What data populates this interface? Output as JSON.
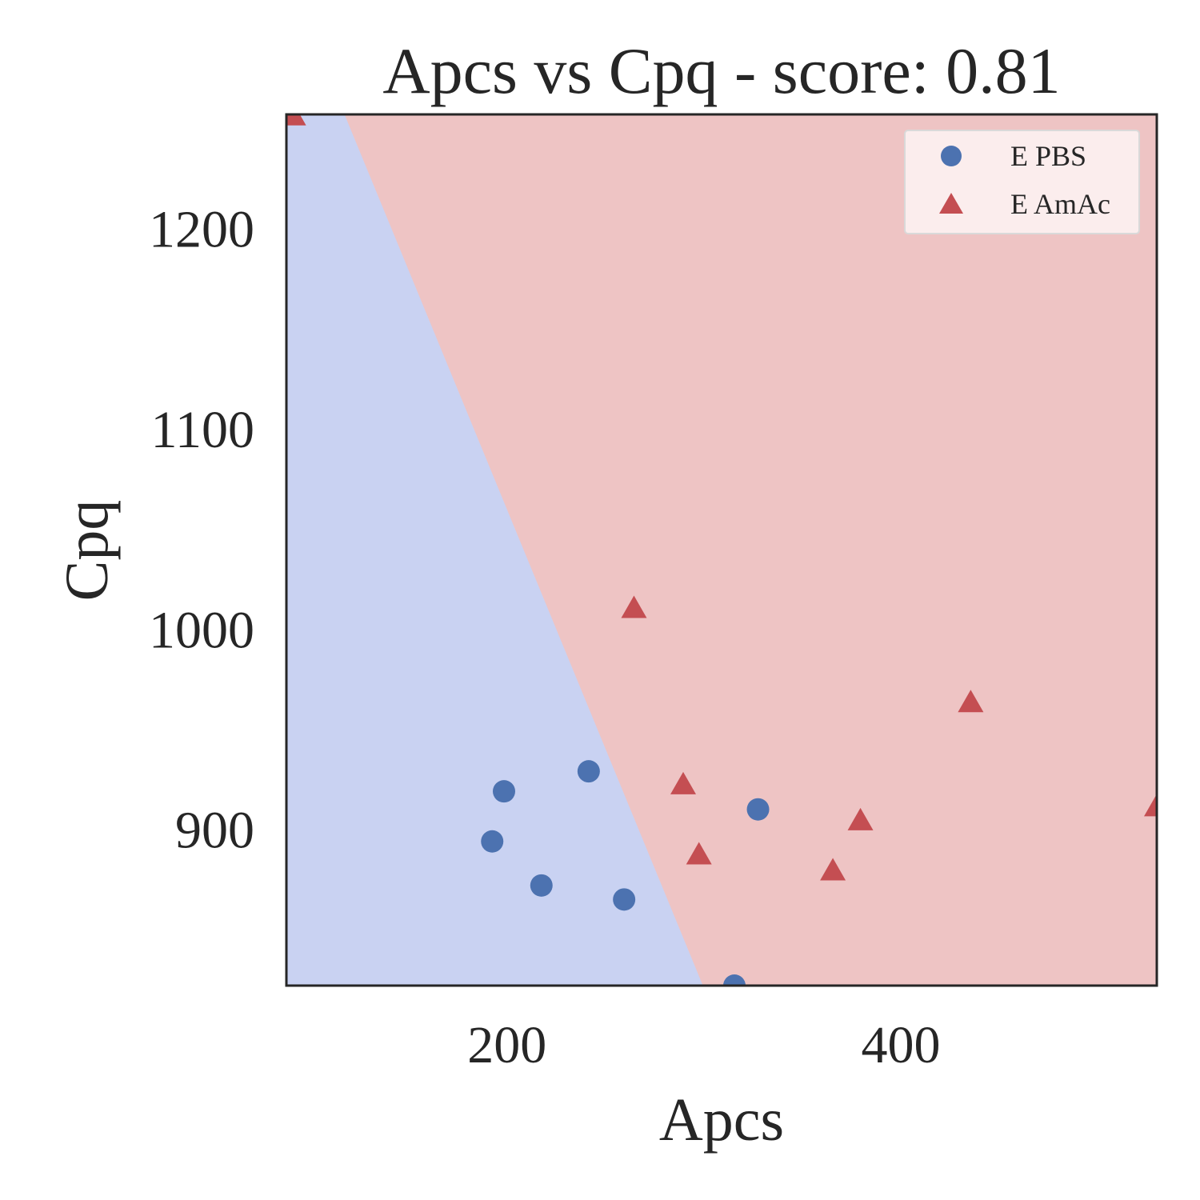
{
  "chart_data": {
    "type": "scatter",
    "title": "Apcs vs Cpq - score: 0.81",
    "xlabel": "Apcs",
    "ylabel": "Cpq",
    "xlim": [
      88,
      530
    ],
    "ylim": [
      822,
      1257
    ],
    "xticks": [
      200,
      400
    ],
    "yticks": [
      900,
      1000,
      1100,
      1200
    ],
    "grid": false,
    "legend_position": "top-right",
    "decision_boundary": {
      "description": "linear classifier regions",
      "line": [
        [
          117.5,
          1257
        ],
        [
          299.5,
          822
        ]
      ],
      "left_region": "E PBS",
      "right_region": "E AmAc"
    },
    "colors": {
      "E PBS": "#4c72b0",
      "E AmAc": "#c44e52",
      "region_pbs": "#c9d2f2",
      "region_amac": "#eec4c4"
    },
    "series": [
      {
        "name": "E PBS",
        "marker": "circle",
        "x": [
          192.5,
          198.5,
          217.5,
          241.5,
          259.5,
          315.5,
          327.5
        ],
        "y": [
          894,
          919,
          872,
          929,
          865,
          822,
          910
        ]
      },
      {
        "name": "E AmAc",
        "marker": "triangle",
        "x": [
          91.5,
          264.5,
          289.5,
          297.5,
          365.5,
          379.5,
          435.5,
          530.0
        ],
        "y": [
          1256,
          1010,
          922,
          887,
          879,
          904,
          963,
          911
        ]
      }
    ]
  }
}
